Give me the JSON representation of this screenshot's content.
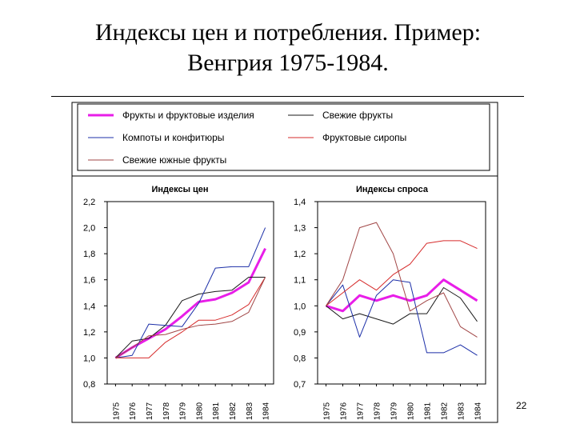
{
  "slide": {
    "title_line1": "Индексы цен и потребления. Пример:",
    "title_line2": "Венгрия 1975-1984.",
    "page_number": "22"
  },
  "legend": [
    {
      "name": "Фрукты и фруктовые изделия",
      "color": "#e81ee8"
    },
    {
      "name": "Свежие фрукты",
      "color": "#1a1a1a"
    },
    {
      "name": "Компоты и конфитюры",
      "color": "#1c2fa8"
    },
    {
      "name": "Фруктовые сиропы",
      "color": "#d62b2b"
    },
    {
      "name": "Свежие южные фрукты",
      "color": "#a14646"
    }
  ],
  "chart_data": [
    {
      "type": "line",
      "title": "Индексы цен",
      "x": [
        "1975",
        "1976",
        "1977",
        "1978",
        "1979",
        "1980",
        "1981",
        "1982",
        "1983",
        "1984"
      ],
      "ylim": [
        0.8,
        2.2
      ],
      "yticks": [
        "0,8",
        "1,0",
        "1,2",
        "1,4",
        "1,6",
        "1,8",
        "2,0",
        "2,2"
      ],
      "series": [
        {
          "name": "Фрукты и фруктовые изделия",
          "values": [
            1.0,
            1.08,
            1.15,
            1.22,
            1.32,
            1.43,
            1.45,
            1.5,
            1.58,
            1.84
          ]
        },
        {
          "name": "Свежие фрукты",
          "values": [
            1.0,
            1.13,
            1.15,
            1.25,
            1.44,
            1.49,
            1.51,
            1.52,
            1.62,
            1.62
          ]
        },
        {
          "name": "Компоты и конфитюры",
          "values": [
            1.0,
            1.02,
            1.26,
            1.25,
            1.24,
            1.42,
            1.69,
            1.7,
            1.7,
            2.0
          ]
        },
        {
          "name": "Фруктовые сиропы",
          "values": [
            1.0,
            1.0,
            1.0,
            1.12,
            1.2,
            1.29,
            1.29,
            1.33,
            1.41,
            1.62
          ]
        },
        {
          "name": "Свежие южные фрукты",
          "values": [
            1.0,
            1.08,
            1.17,
            1.18,
            1.22,
            1.25,
            1.26,
            1.28,
            1.35,
            1.62
          ]
        }
      ]
    },
    {
      "type": "line",
      "title": "Индексы спроса",
      "x": [
        "1975",
        "1976",
        "1977",
        "1978",
        "1979",
        "1980",
        "1981",
        "1982",
        "1983",
        "1984"
      ],
      "ylim": [
        0.7,
        1.4
      ],
      "yticks": [
        "0,7",
        "0,8",
        "0,9",
        "1,0",
        "1,1",
        "1,2",
        "1,3",
        "1,4"
      ],
      "series": [
        {
          "name": "Фрукты и фруктовые изделия",
          "values": [
            1.0,
            0.98,
            1.04,
            1.02,
            1.04,
            1.02,
            1.04,
            1.1,
            1.06,
            1.02
          ]
        },
        {
          "name": "Свежие фрукты",
          "values": [
            1.0,
            0.95,
            0.97,
            0.95,
            0.93,
            0.97,
            0.97,
            1.07,
            1.03,
            0.94
          ]
        },
        {
          "name": "Компоты и конфитюры",
          "values": [
            1.0,
            1.08,
            0.88,
            1.04,
            1.1,
            1.09,
            0.82,
            0.82,
            0.85,
            0.81
          ]
        },
        {
          "name": "Фруктовые сиропы",
          "values": [
            1.0,
            1.05,
            1.1,
            1.06,
            1.12,
            1.16,
            1.24,
            1.25,
            1.25,
            1.22
          ]
        },
        {
          "name": "Свежие южные фрукты",
          "values": [
            1.0,
            1.1,
            1.3,
            1.32,
            1.2,
            0.98,
            1.02,
            1.05,
            0.92,
            0.88
          ]
        }
      ]
    }
  ]
}
